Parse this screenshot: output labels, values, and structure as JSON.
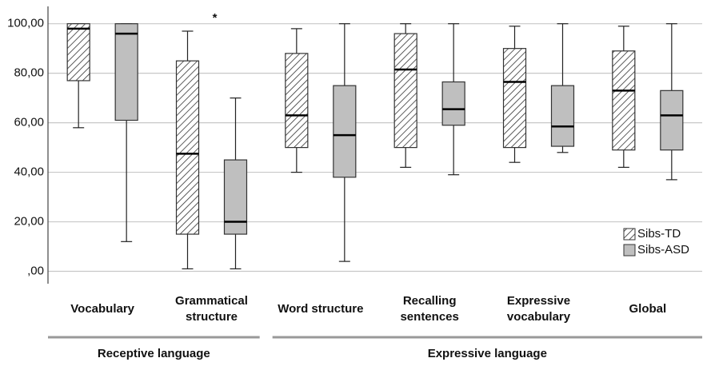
{
  "chart_data": {
    "type": "box",
    "categories": [
      "Vocabulary",
      "Grammatical structure",
      "Word structure",
      "Recalling sentences",
      "Expressive vocabulary",
      "Global"
    ],
    "groups": [
      {
        "label": "Receptive language",
        "count": 2
      },
      {
        "label": "Expressive language",
        "count": 4
      }
    ],
    "series": [
      {
        "name": "Sibs-TD",
        "color": "#ffffff",
        "pattern": "hatch",
        "values": [
          {
            "min": 58,
            "q1": 77,
            "median": 98,
            "q3": 100,
            "max": 100
          },
          {
            "min": 1,
            "q1": 15,
            "median": 47.5,
            "q3": 85,
            "max": 97
          },
          {
            "min": 40,
            "q1": 50,
            "median": 63,
            "q3": 88,
            "max": 98
          },
          {
            "min": 42,
            "q1": 50,
            "median": 81.5,
            "q3": 96,
            "max": 100
          },
          {
            "min": 44,
            "q1": 50,
            "median": 76.5,
            "q3": 90,
            "max": 99
          },
          {
            "min": 42,
            "q1": 49,
            "median": 73,
            "q3": 89,
            "max": 99
          }
        ]
      },
      {
        "name": "Sibs-ASD",
        "color": "#bfbfbf",
        "values": [
          {
            "min": 12,
            "q1": 61,
            "median": 96,
            "q3": 100,
            "max": 100
          },
          {
            "min": 1,
            "q1": 15,
            "median": 20,
            "q3": 45,
            "max": 70
          },
          {
            "min": 4,
            "q1": 38,
            "median": 55,
            "q3": 75,
            "max": 100
          },
          {
            "min": 39,
            "q1": 59,
            "median": 65.5,
            "q3": 76.5,
            "max": 100
          },
          {
            "min": 48,
            "q1": 50.5,
            "median": 58.5,
            "q3": 75,
            "max": 100
          },
          {
            "min": 37,
            "q1": 49,
            "median": 63,
            "q3": 73,
            "max": 100
          }
        ]
      }
    ],
    "annotations": [
      {
        "text": "*",
        "category": 1
      }
    ],
    "ylim": [
      -5,
      107
    ],
    "yticks": [
      {
        "value": 0,
        "label": ",00"
      },
      {
        "value": 20,
        "label": "20,00"
      },
      {
        "value": 40,
        "label": "40,00"
      },
      {
        "value": 60,
        "label": "60,00"
      },
      {
        "value": 80,
        "label": "80,00"
      },
      {
        "value": 100,
        "label": "100,00"
      }
    ],
    "grid": true,
    "legend": "lower right"
  }
}
